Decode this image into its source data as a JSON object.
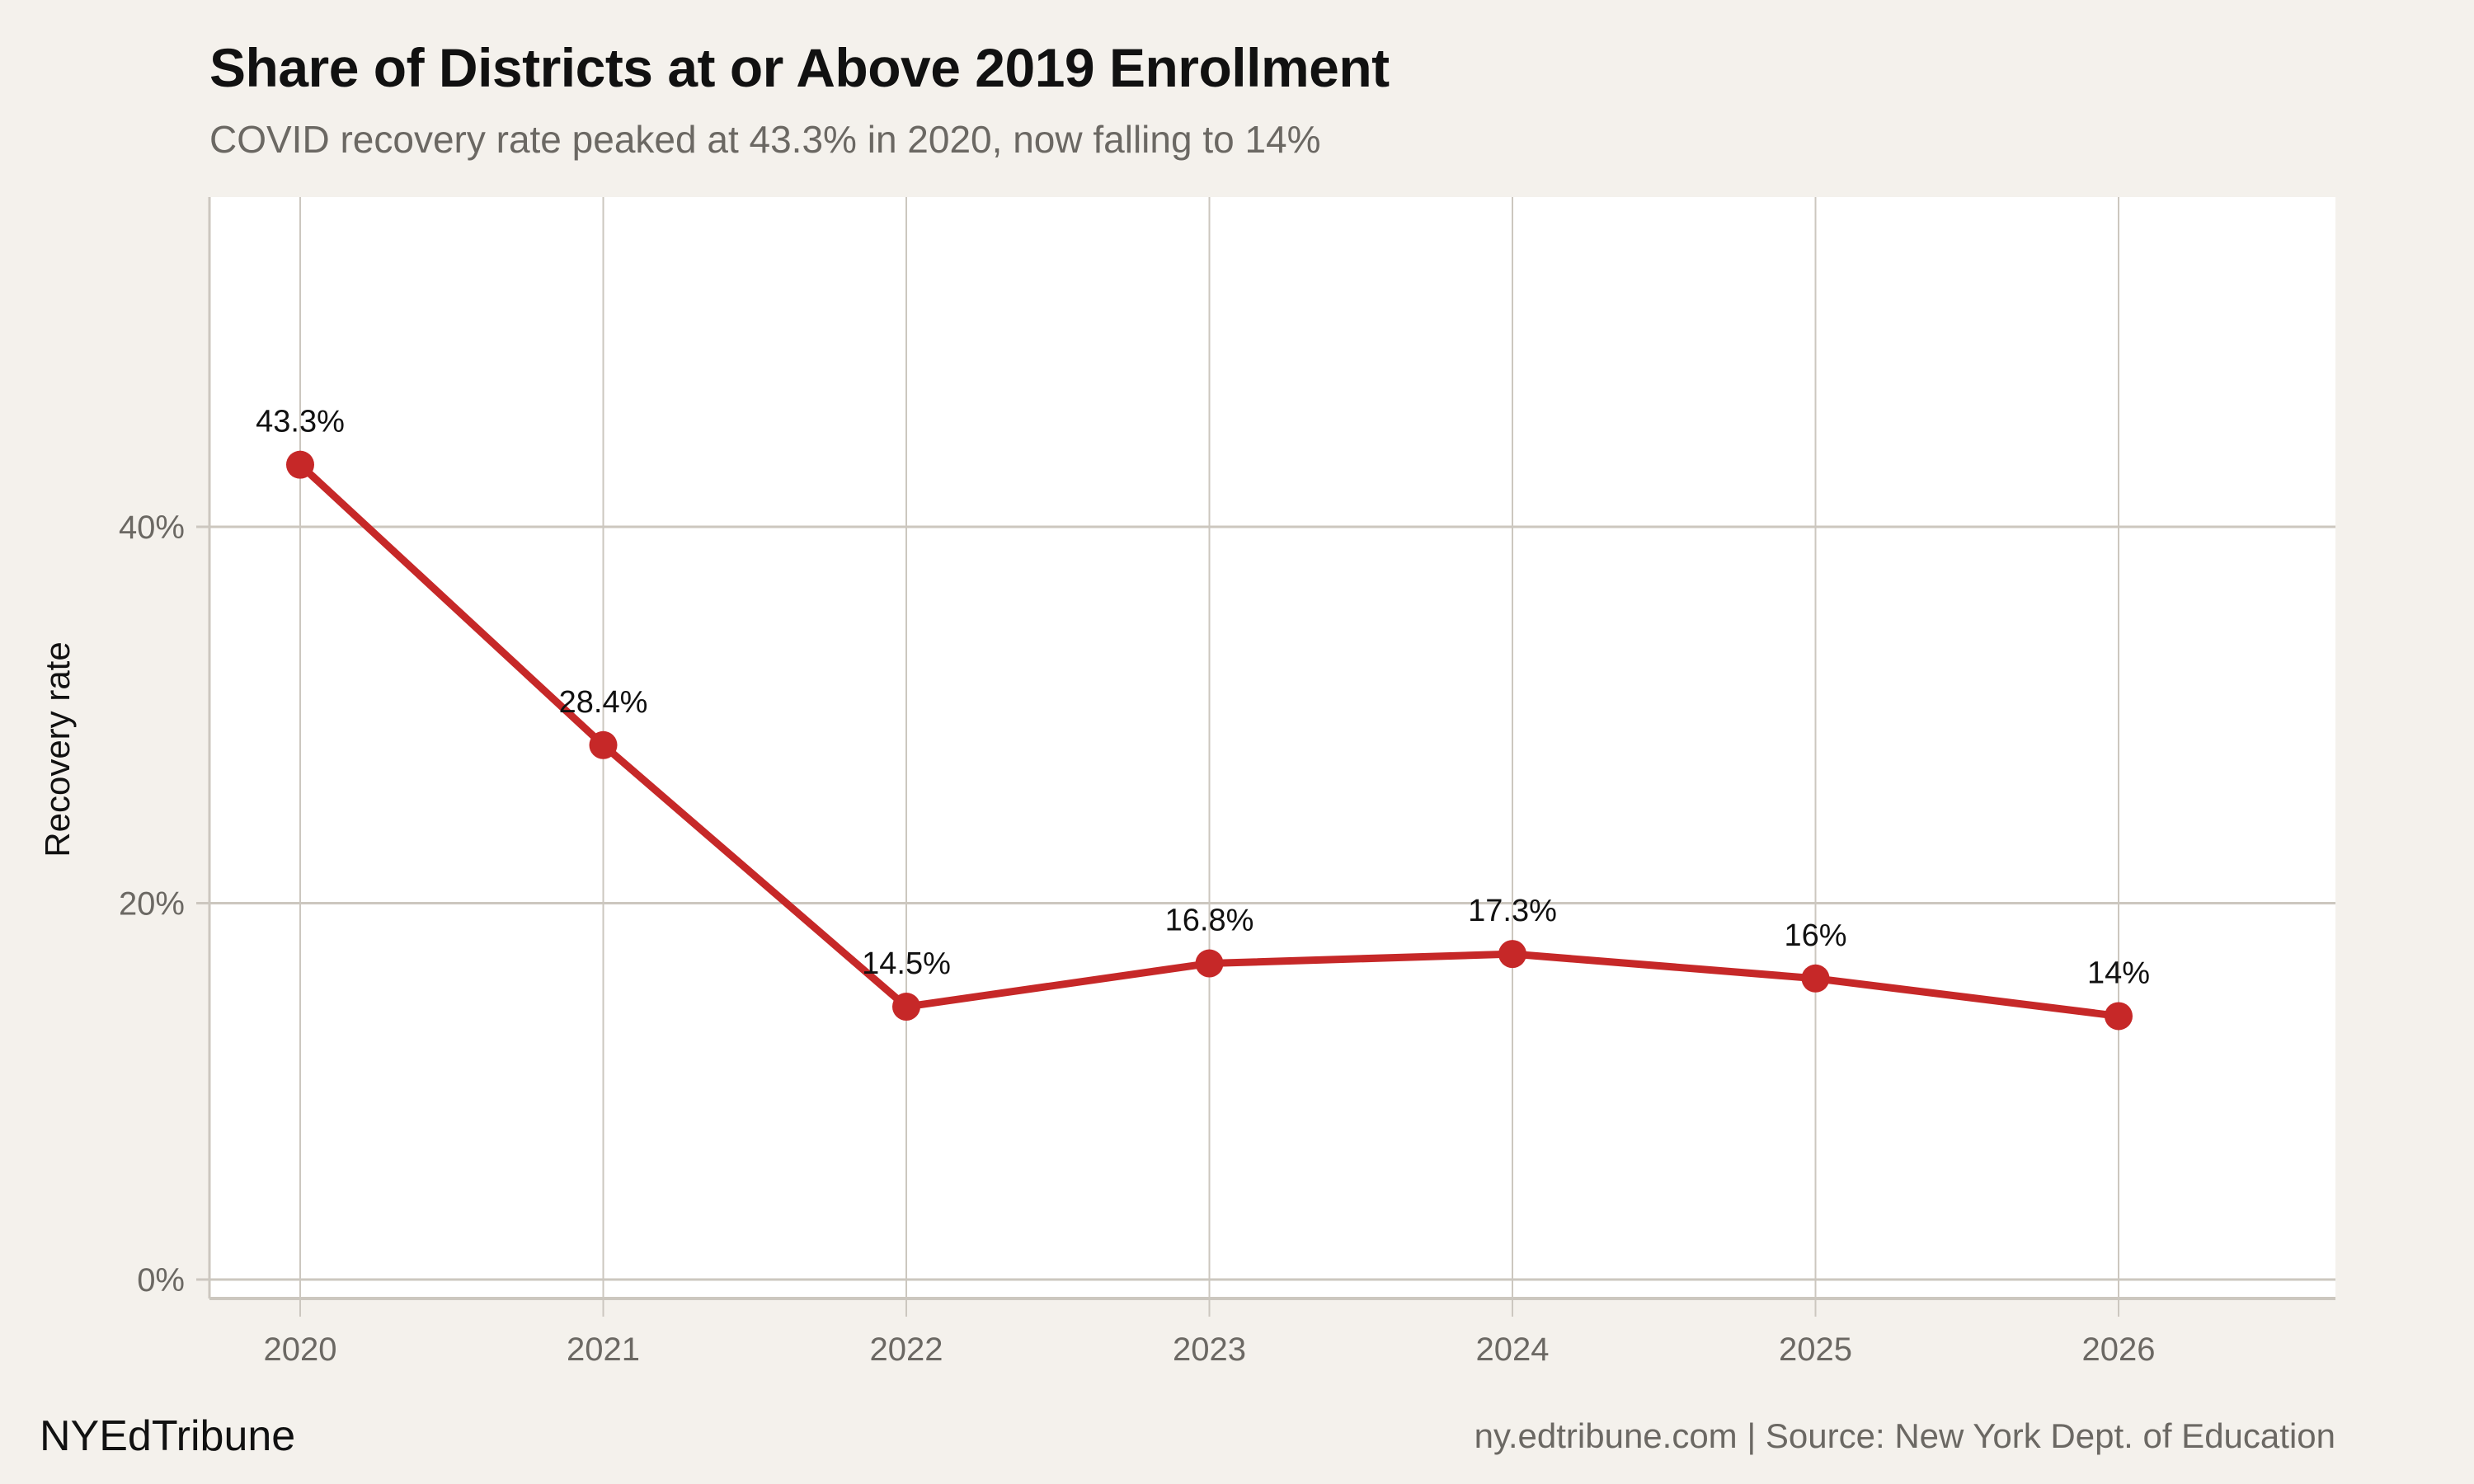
{
  "chart_data": {
    "type": "line",
    "title": "Share of Districts at or Above 2019 Enrollment",
    "subtitle": "COVID recovery rate peaked at 43.3% in 2020, now falling to 14%",
    "xlabel": "",
    "ylabel": "Recovery rate",
    "x": [
      2020,
      2021,
      2022,
      2023,
      2024,
      2025,
      2026
    ],
    "x_tick_labels": [
      "2020",
      "2021",
      "2022",
      "2023",
      "2024",
      "2025",
      "2026"
    ],
    "series": [
      {
        "name": "Recovery rate",
        "values": [
          43.3,
          28.4,
          14.5,
          16.8,
          17.3,
          16.0,
          14.0
        ],
        "color": "#c62828"
      }
    ],
    "data_labels": [
      "43.3%",
      "28.4%",
      "14.5%",
      "16.8%",
      "17.3%",
      "16%",
      "14%"
    ],
    "y_ticks": [
      0,
      20,
      40
    ],
    "y_tick_labels": [
      "0%",
      "20%",
      "40%"
    ],
    "ylim": [
      -1,
      57.5
    ],
    "xlim": [
      2019.7,
      2026.72
    ],
    "grid": true,
    "legend": "none"
  },
  "footer": {
    "brand": "NYEdTribune",
    "source": "ny.edtribune.com | Source: New York Dept. of Education"
  },
  "colors": {
    "background": "#f4f1ec",
    "panel": "#ffffff",
    "grid": "#ccc7bf",
    "line": "#c62828"
  }
}
